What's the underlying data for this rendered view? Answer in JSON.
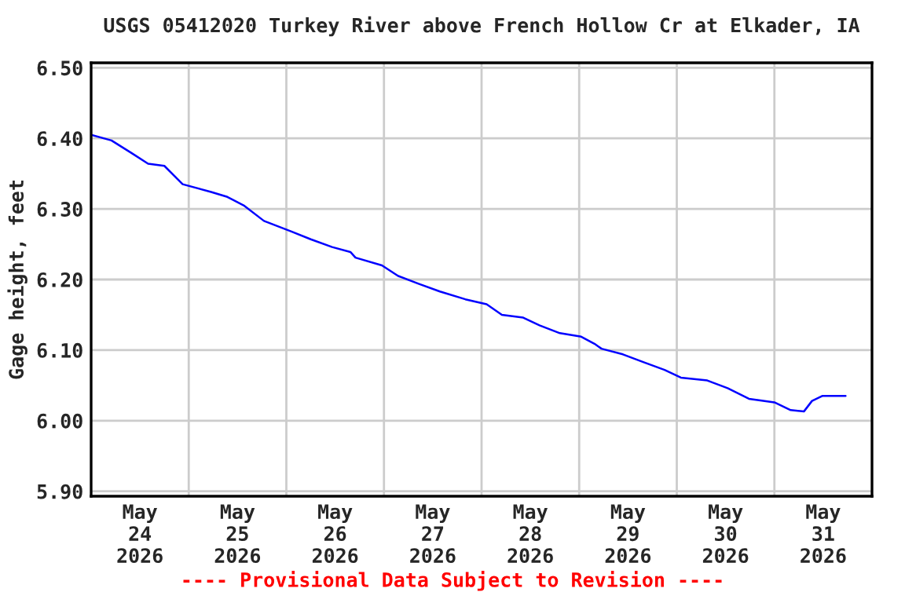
{
  "chart_data": {
    "type": "line",
    "title": "USGS 05412020 Turkey River above French Hollow Cr at Elkader, IA",
    "ylabel": "Gage height, feet",
    "annotations": [
      "---- Provisional Data Subject to Revision ----"
    ],
    "x": [
      "2026-05-24T00:00",
      "2026-05-24T05:00",
      "2026-05-24T10:00",
      "2026-05-24T14:00",
      "2026-05-24T18:00",
      "2026-05-24T22:30",
      "2026-05-25T05:30",
      "2026-05-25T09:30",
      "2026-05-25T13:30",
      "2026-05-25T18:30",
      "2026-05-26T01:15",
      "2026-05-26T06:00",
      "2026-05-26T11:15",
      "2026-05-26T15:45",
      "2026-05-26T17:00",
      "2026-05-26T23:30",
      "2026-05-27T03:30",
      "2026-05-27T08:30",
      "2026-05-27T13:45",
      "2026-05-27T20:00",
      "2026-05-28T01:15",
      "2026-05-28T05:00",
      "2026-05-28T10:15",
      "2026-05-28T14:15",
      "2026-05-28T19:15",
      "2026-05-29T00:30",
      "2026-05-29T03:45",
      "2026-05-29T05:30",
      "2026-05-29T10:45",
      "2026-05-29T15:45",
      "2026-05-29T21:00",
      "2026-05-30T01:00",
      "2026-05-30T07:30",
      "2026-05-30T12:30",
      "2026-05-30T17:45",
      "2026-05-31T00:00",
      "2026-05-31T04:00",
      "2026-05-31T07:15",
      "2026-05-31T09:15",
      "2026-05-31T11:45",
      "2026-05-31T17:30"
    ],
    "series": [
      {
        "color": "#0000ff",
        "values": [
          6.405,
          6.397,
          6.379,
          6.364,
          6.361,
          6.335,
          6.324,
          6.317,
          6.305,
          6.283,
          6.268,
          6.257,
          6.246,
          6.239,
          6.231,
          6.22,
          6.205,
          6.194,
          6.183,
          6.172,
          6.165,
          6.15,
          6.146,
          6.135,
          6.124,
          6.119,
          6.109,
          6.102,
          6.094,
          6.083,
          6.072,
          6.061,
          6.057,
          6.046,
          6.031,
          6.026,
          6.015,
          6.013,
          6.028,
          6.035,
          6.035
        ]
      }
    ],
    "xlim": [
      "2026-05-24T00:00",
      "2026-06-01T00:00"
    ],
    "xticks": [
      {
        "value": "2026-05-24T12:00",
        "label": "May\n24\n2026"
      },
      {
        "value": "2026-05-25T00:00",
        "label": null
      },
      {
        "value": "2026-05-25T12:00",
        "label": "May\n25\n2026"
      },
      {
        "value": "2026-05-26T00:00",
        "label": null
      },
      {
        "value": "2026-05-26T12:00",
        "label": "May\n26\n2026"
      },
      {
        "value": "2026-05-27T00:00",
        "label": null
      },
      {
        "value": "2026-05-27T12:00",
        "label": "May\n27\n2026"
      },
      {
        "value": "2026-05-28T00:00",
        "label": null
      },
      {
        "value": "2026-05-28T12:00",
        "label": "May\n28\n2026"
      },
      {
        "value": "2026-05-29T00:00",
        "label": null
      },
      {
        "value": "2026-05-29T12:00",
        "label": "May\n29\n2026"
      },
      {
        "value": "2026-05-30T00:00",
        "label": null
      },
      {
        "value": "2026-05-30T12:00",
        "label": "May\n30\n2026"
      },
      {
        "value": "2026-05-31T00:00",
        "label": null
      },
      {
        "value": "2026-05-31T12:00",
        "label": "May\n31\n2026"
      }
    ],
    "ylim": [
      5.893,
      6.507
    ],
    "yticks": [
      {
        "value": 5.9,
        "label": "5.90"
      },
      {
        "value": 6.0,
        "label": "6.00"
      },
      {
        "value": 6.1,
        "label": "6.10"
      },
      {
        "value": 6.2,
        "label": "6.20"
      },
      {
        "value": 6.3,
        "label": "6.30"
      },
      {
        "value": 6.4,
        "label": "6.40"
      },
      {
        "value": 6.5,
        "label": "6.50"
      }
    ],
    "grid": true,
    "legend": false
  }
}
